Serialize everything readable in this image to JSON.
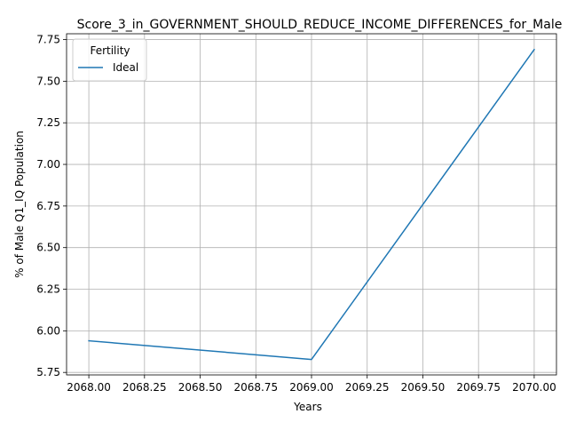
{
  "chart_data": {
    "type": "line",
    "title": "Score_3_in_GOVERNMENT_SHOULD_REDUCE_INCOME_DIFFERENCES_for_Male",
    "xlabel": "Years",
    "ylabel": "% of Male Q1_IQ Population",
    "xlim": [
      2067.9,
      2070.1
    ],
    "ylim": [
      5.735,
      7.785
    ],
    "xticks": [
      2068.0,
      2068.25,
      2068.5,
      2068.75,
      2069.0,
      2069.25,
      2069.5,
      2069.75,
      2070.0
    ],
    "xtick_labels": [
      "2068.00",
      "2068.25",
      "2068.50",
      "2068.75",
      "2069.00",
      "2069.25",
      "2069.50",
      "2069.75",
      "2070.00"
    ],
    "yticks": [
      5.75,
      6.0,
      6.25,
      6.5,
      6.75,
      7.0,
      7.25,
      7.5,
      7.75
    ],
    "ytick_labels": [
      "5.75",
      "6.00",
      "6.25",
      "6.50",
      "6.75",
      "7.00",
      "7.25",
      "7.50",
      "7.75"
    ],
    "grid": true,
    "legend": {
      "title": "Fertility",
      "placement": "top-left"
    },
    "series": [
      {
        "name": "Ideal",
        "color": "#1f77b4",
        "x": [
          2068,
          2069,
          2070
        ],
        "y": [
          5.94,
          5.828,
          7.69
        ]
      }
    ]
  }
}
